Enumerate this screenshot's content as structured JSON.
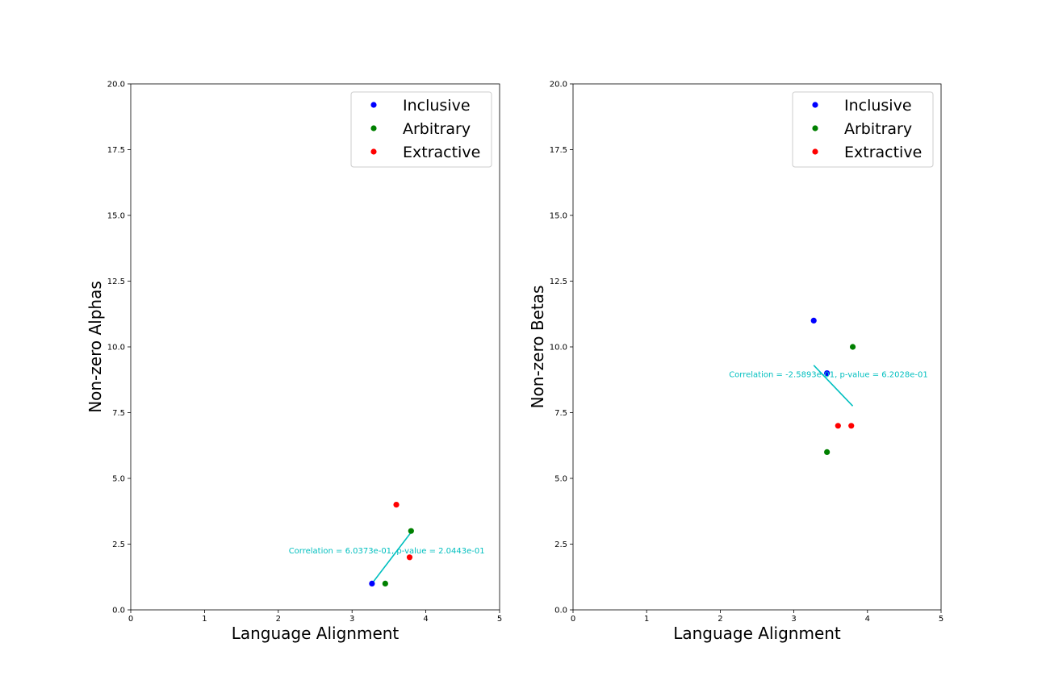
{
  "chart_data": [
    {
      "type": "scatter",
      "title": "",
      "xlabel": "Language Alignment",
      "ylabel": "Non-zero Alphas",
      "xlim": [
        0,
        5
      ],
      "ylim": [
        0,
        20
      ],
      "x_ticks": [
        "0",
        "1",
        "2",
        "3",
        "4",
        "5"
      ],
      "y_ticks": [
        "0.0",
        "2.5",
        "5.0",
        "7.5",
        "10.0",
        "12.5",
        "15.0",
        "17.5",
        "20.0"
      ],
      "grid": false,
      "legend_position": "top-right",
      "series": [
        {
          "name": "Inclusive",
          "color": "#0000ff",
          "points": [
            [
              3.27,
              1
            ]
          ]
        },
        {
          "name": "Arbitrary",
          "color": "#008000",
          "points": [
            [
              3.45,
              1
            ],
            [
              3.8,
              3
            ]
          ]
        },
        {
          "name": "Extractive",
          "color": "#ff0000",
          "points": [
            [
              3.6,
              4
            ],
            [
              3.78,
              2
            ]
          ]
        }
      ],
      "trend_line": {
        "color": "#00bfbf",
        "from": [
          3.27,
          1.0
        ],
        "to": [
          3.8,
          2.95
        ]
      },
      "annotation": {
        "text": "Correlation = 6.0373e-01, p-value = 2.0443e-01",
        "color": "#00bfbf",
        "x": 3.47,
        "y": 2.15
      }
    },
    {
      "type": "scatter",
      "title": "",
      "xlabel": "Language Alignment",
      "ylabel": "Non-zero Betas",
      "xlim": [
        0,
        5
      ],
      "ylim": [
        0,
        20
      ],
      "x_ticks": [
        "0",
        "1",
        "2",
        "3",
        "4",
        "5"
      ],
      "y_ticks": [
        "0.0",
        "2.5",
        "5.0",
        "7.5",
        "10.0",
        "12.5",
        "15.0",
        "17.5",
        "20.0"
      ],
      "grid": false,
      "legend_position": "top-right",
      "series": [
        {
          "name": "Inclusive",
          "color": "#0000ff",
          "points": [
            [
              3.27,
              11
            ],
            [
              3.45,
              9
            ]
          ]
        },
        {
          "name": "Arbitrary",
          "color": "#008000",
          "points": [
            [
              3.8,
              10
            ],
            [
              3.45,
              6
            ]
          ]
        },
        {
          "name": "Extractive",
          "color": "#ff0000",
          "points": [
            [
              3.6,
              7
            ],
            [
              3.78,
              7
            ]
          ]
        }
      ],
      "trend_line": {
        "color": "#00bfbf",
        "from": [
          3.27,
          9.3
        ],
        "to": [
          3.8,
          7.75
        ]
      },
      "annotation": {
        "text": "Correlation = -2.5893e-01, p-value = 6.2028e-01",
        "color": "#00bfbf",
        "x": 3.47,
        "y": 8.85
      }
    }
  ]
}
